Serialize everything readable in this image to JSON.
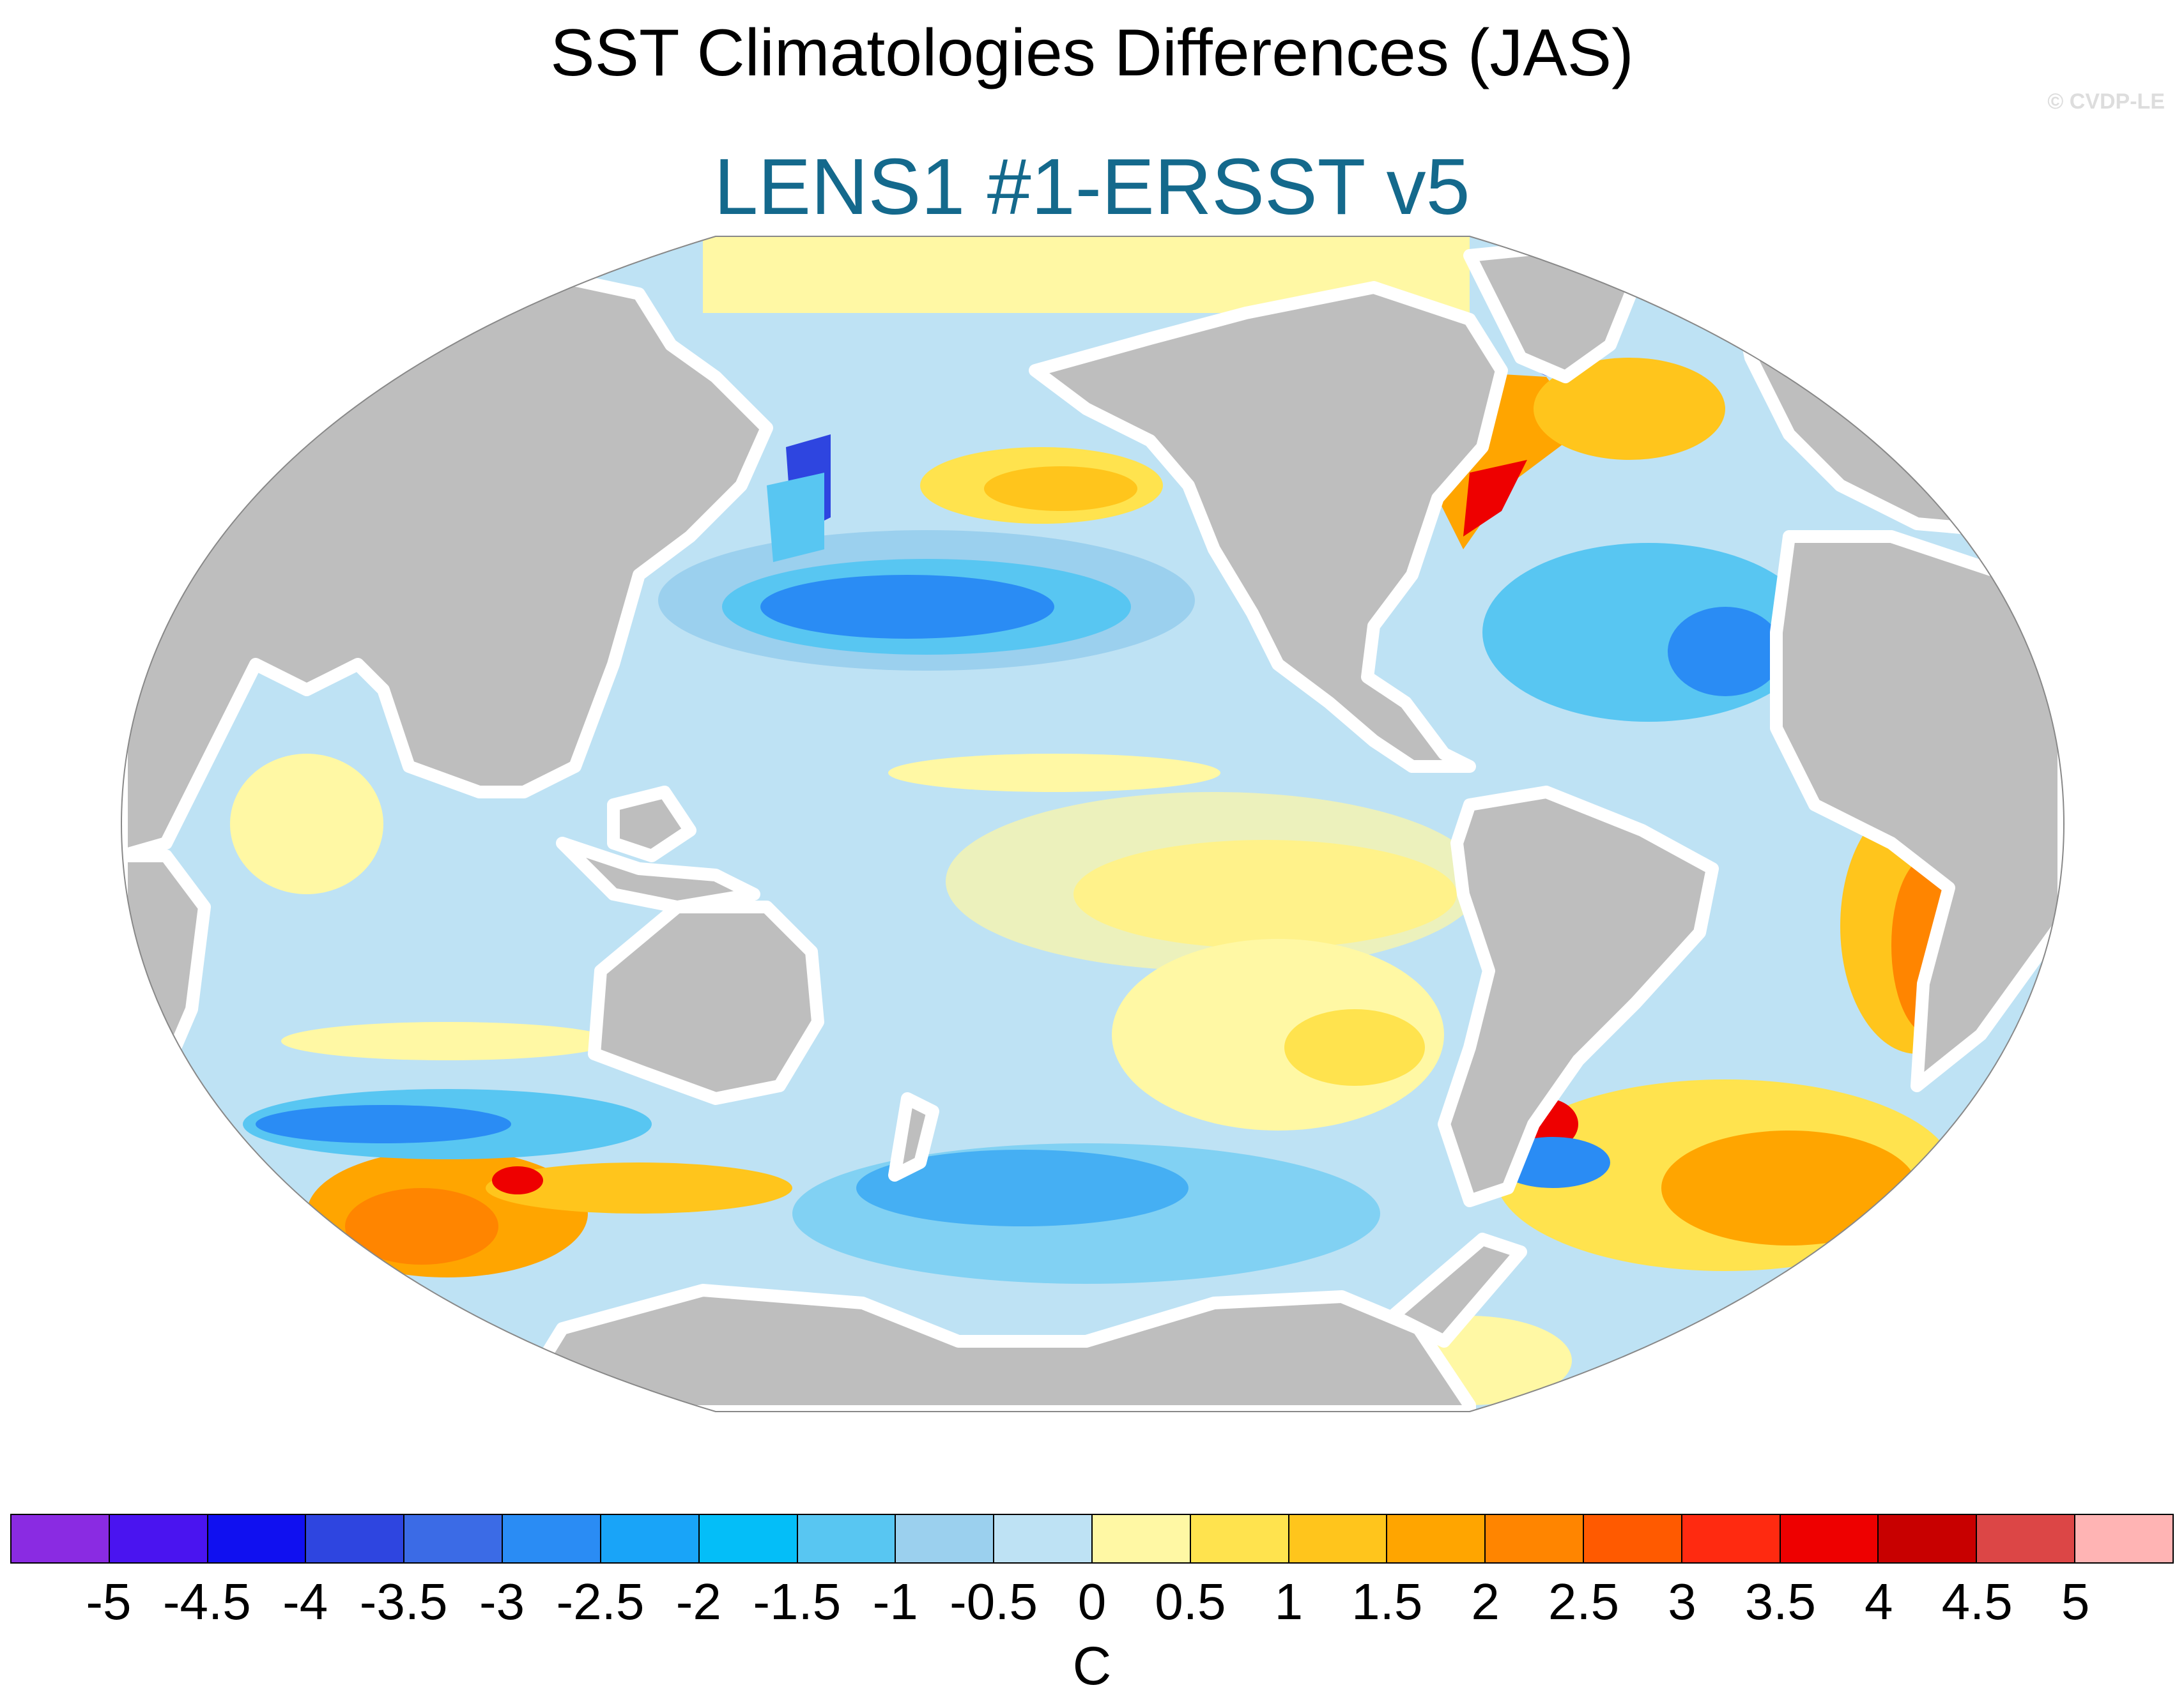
{
  "title": "SST Climatologies Differences (JAS)",
  "subtitle": "LENS1 #1-ERSST v5",
  "credit": "© CVDP-LE",
  "colors": {
    "subtitle": "#14698c",
    "land": "#bebebe",
    "missing": "#ffffff"
  },
  "colorbar": {
    "unit": "C",
    "ticks": [
      "-5",
      "-4.5",
      "-4",
      "-3.5",
      "-3",
      "-2.5",
      "-2",
      "-1.5",
      "-1",
      "-0.5",
      "0",
      "0.5",
      "1",
      "1.5",
      "2",
      "2.5",
      "3",
      "3.5",
      "4",
      "4.5",
      "5"
    ],
    "colors": [
      "#8a2be2",
      "#4a14f0",
      "#1010f0",
      "#2e45e0",
      "#3b6be6",
      "#2a8cf4",
      "#19a4f8",
      "#04bef8",
      "#58c6f2",
      "#9bd0ee",
      "#bee2f4",
      "#fff8a4",
      "#ffe34e",
      "#ffc51c",
      "#ffa500",
      "#ff8500",
      "#ff5a00",
      "#ff2a10",
      "#ee0000",
      "#c80000",
      "#dc4646",
      "#ffb4b4"
    ]
  }
}
